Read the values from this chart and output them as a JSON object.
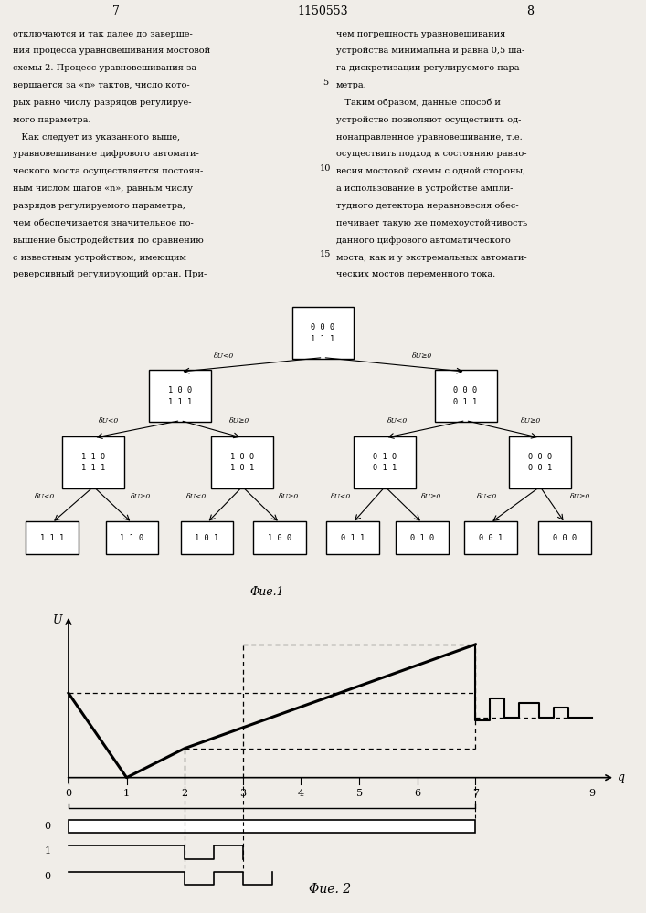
{
  "page_number_left": "7",
  "page_number_center": "1150553",
  "page_number_right": "8",
  "text_left": [
    "отключаются и так далее до заверше-",
    "ния процесса уравновешивания мостовой",
    "схемы 2. Процесс уравновешивания за-",
    "вершается за «n» тактов, число кото-",
    "рых равно числу разрядов регулируе-",
    "мого параметра.",
    "   Как следует из указанного выше,",
    "уравновешивание цифрового автомати-",
    "ческого моста осуществляется постоян-",
    "ным числом шагов «n», равным числу",
    "разрядов регулируемого параметра,",
    "чем обеспечивается значительное по-",
    "вышение быстродействия по сравнению",
    "с известным устройством, имеющим",
    "реверсивный регулирующий орган. При-"
  ],
  "text_right": [
    "чем погрешность уравновешивания",
    "устройства минимальна и равна 0,5 ша-",
    "га дискретизации регулируемого пара-",
    "метра.",
    "   Таким образом, данные способ и",
    "устройство позволяют осуществить од-",
    "нонаправленное уравновешивание, т.е.",
    "осуществить подход к состоянию равно-",
    "весия мостовой схемы с одной стороны,",
    "а использование в устройстве ампли-",
    "тудного детектора неравновесия обес-",
    "печивает такую же помехоустойчивость",
    "данного цифрового автоматического",
    "моста, как и у экстремальных автомати-",
    "ческих мостов переменного тока."
  ],
  "line_number_5": "5",
  "line_number_10": "10",
  "line_number_15": "15",
  "fig1_caption": "Φue.1",
  "fig2_caption": "Φue. 2",
  "background_color": "#f0ede8",
  "edge_labels_left": [
    "δU<0",
    "δU<0",
    "δU<0",
    "δU<0",
    "δU<0",
    "δU<0",
    "δU<0"
  ],
  "edge_labels_right": [
    "δU≥0",
    "δU≥0",
    "δU≥0",
    "δU≥0",
    "δU≥0",
    "δU≥0",
    "δU≥0"
  ]
}
